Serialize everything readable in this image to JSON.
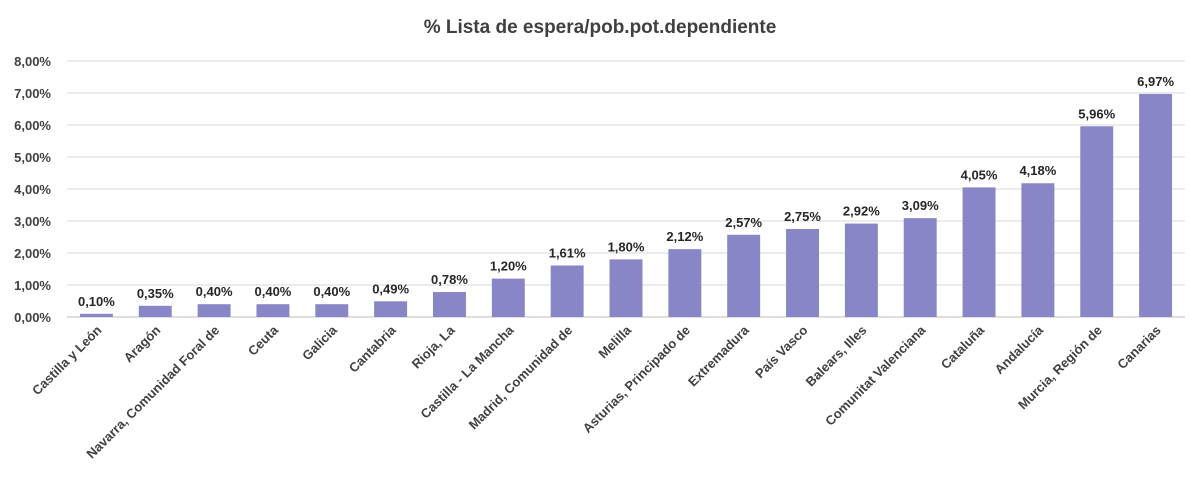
{
  "chart_data": {
    "type": "bar",
    "title": "% Lista de espera/pob.pot.dependiente",
    "xlabel": "",
    "ylabel": "",
    "ylim": [
      0,
      8
    ],
    "grid": true,
    "bar_color": "#8986c8",
    "y_ticks": [
      "0,00%",
      "1,00%",
      "2,00%",
      "3,00%",
      "4,00%",
      "5,00%",
      "6,00%",
      "7,00%",
      "8,00%"
    ],
    "categories": [
      "Castilla y León",
      "Aragón",
      "Navarra, Comunidad Foral de",
      "Ceuta",
      "Galicia",
      "Cantabria",
      "Rioja, La",
      "Castilla - La Mancha",
      "Madrid, Comunidad de",
      "Melilla",
      "Asturias, Principado de",
      "Extremadura",
      "País Vasco",
      "Balears, Illes",
      "Comunitat Valenciana",
      "Cataluña",
      "Andalucía",
      "Murcia, Región de",
      "Canarias"
    ],
    "values": [
      0.1,
      0.35,
      0.4,
      0.4,
      0.4,
      0.49,
      0.78,
      1.2,
      1.61,
      1.8,
      2.12,
      2.57,
      2.75,
      2.92,
      3.09,
      4.05,
      4.18,
      5.96,
      6.97
    ],
    "data_labels": [
      "0,10%",
      "0,35%",
      "0,40%",
      "0,40%",
      "0,40%",
      "0,49%",
      "0,78%",
      "1,20%",
      "1,61%",
      "1,80%",
      "2,12%",
      "2,57%",
      "2,75%",
      "2,92%",
      "3,09%",
      "4,05%",
      "4,18%",
      "5,96%",
      "6,97%"
    ]
  }
}
